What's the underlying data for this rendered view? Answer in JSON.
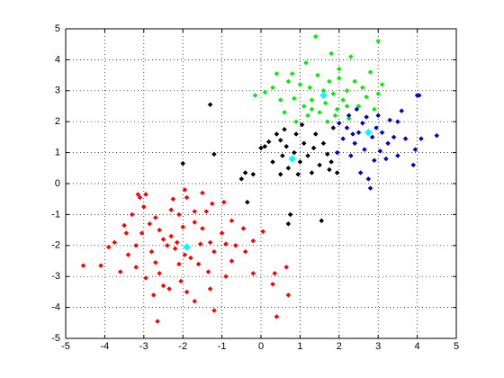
{
  "chart_data": {
    "type": "scatter",
    "xlim": [
      -5,
      5
    ],
    "ylim": [
      -5,
      5
    ],
    "xticks": [
      -5,
      -4,
      -3,
      -2,
      -1,
      0,
      1,
      2,
      3,
      4,
      5
    ],
    "yticks": [
      -5,
      -4,
      -3,
      -2,
      -1,
      0,
      1,
      2,
      3,
      4,
      5
    ],
    "grid": true,
    "series": [
      {
        "color": "#ff0000",
        "x": [
          -4.55,
          -4.1,
          -3.9,
          -3.75,
          -3.45,
          -3.15,
          -3.1,
          -2.95,
          -3.0,
          -3.3,
          -3.5,
          -3.6,
          -3.4,
          -3.2,
          -3.05,
          -2.85,
          -2.7,
          -2.8,
          -2.7,
          -2.6,
          -2.75,
          -2.65,
          -2.5,
          -2.4,
          -2.3,
          -2.3,
          -2.25,
          -2.1,
          -2.0,
          -1.95,
          -2.1,
          -2.05,
          -1.9,
          -1.7,
          -1.6,
          -1.55,
          -1.5,
          -1.7,
          -1.9,
          -1.5,
          -1.4,
          -1.35,
          -1.3,
          -1.2,
          -1.2,
          -1.0,
          -0.95,
          -0.75,
          -0.65,
          -0.45,
          -0.4,
          -0.2,
          -0.2,
          0.05,
          0.3,
          0.4,
          0.7,
          0.65,
          0.35,
          -1.8,
          -2.2,
          -2.5,
          -1.3,
          -0.9,
          -1.7,
          -3.2,
          -2.95,
          -2.35,
          -1.95,
          -2.6,
          -2.15,
          -1.25,
          -0.75,
          -0.9
        ],
        "y": [
          -2.65,
          -2.65,
          -2.05,
          -1.9,
          -1.6,
          -0.35,
          -0.45,
          -0.35,
          -0.75,
          -1.0,
          -1.35,
          -2.85,
          -2.3,
          -2.0,
          -1.6,
          -1.3,
          -1.1,
          -2.2,
          -2.55,
          -2.9,
          -3.6,
          -4.45,
          -3.3,
          -2.0,
          -1.7,
          -0.85,
          -0.5,
          -1.0,
          -1.4,
          -2.3,
          -2.6,
          -3.15,
          -3.5,
          -3.8,
          -2.6,
          -1.95,
          -1.45,
          -0.9,
          -0.45,
          -0.3,
          -0.9,
          -2.85,
          -3.4,
          -4.1,
          -2.2,
          -1.6,
          -0.6,
          -1.2,
          -2.0,
          -1.45,
          -2.2,
          -1.85,
          -2.9,
          -1.55,
          -3.25,
          -4.3,
          -3.6,
          -2.7,
          -2.9,
          -2.4,
          -2.1,
          -1.8,
          -1.9,
          -3.0,
          -1.25,
          -2.7,
          -3.05,
          -3.4,
          -0.2,
          -1.5,
          -1.9,
          -0.65,
          -2.5,
          -1.95
        ]
      },
      {
        "color": "#00ee00",
        "x": [
          -0.15,
          0.1,
          0.3,
          0.4,
          0.5,
          0.6,
          0.7,
          0.8,
          0.85,
          0.9,
          1.0,
          1.1,
          1.15,
          1.2,
          1.25,
          1.3,
          1.4,
          1.45,
          1.5,
          1.6,
          1.65,
          1.7,
          1.75,
          1.8,
          1.85,
          1.95,
          2.0,
          2.1,
          2.2,
          2.25,
          2.3,
          2.4,
          2.5,
          2.6,
          2.7,
          2.8,
          2.9,
          3.0,
          3.1,
          3.0,
          2.0,
          1.3,
          2.2,
          1.9
        ],
        "y": [
          2.85,
          2.95,
          3.1,
          3.55,
          2.7,
          2.3,
          3.3,
          3.55,
          2.75,
          2.0,
          3.2,
          2.5,
          3.9,
          2.2,
          3.1,
          2.7,
          4.75,
          3.5,
          2.3,
          3.0,
          2.6,
          2.0,
          3.3,
          4.2,
          2.9,
          2.4,
          3.7,
          2.7,
          3.0,
          2.1,
          4.1,
          3.3,
          2.5,
          3.1,
          2.8,
          3.6,
          2.4,
          4.6,
          3.2,
          2.9,
          3.4,
          2.4,
          2.5,
          2.2
        ]
      },
      {
        "color": "#0000cc",
        "x": [
          1.95,
          2.0,
          2.1,
          2.2,
          2.25,
          2.3,
          2.4,
          2.45,
          2.5,
          2.55,
          2.6,
          2.65,
          2.7,
          2.75,
          2.8,
          2.85,
          2.9,
          2.95,
          3.0,
          3.05,
          3.1,
          3.2,
          3.25,
          3.3,
          3.4,
          3.5,
          3.6,
          3.7,
          3.9,
          3.95,
          4.0,
          4.05,
          4.1,
          4.5,
          3.5,
          2.35
        ],
        "y": [
          1.0,
          1.95,
          1.45,
          1.8,
          2.2,
          0.9,
          1.3,
          2.4,
          1.65,
          0.35,
          1.95,
          1.1,
          2.15,
          0.15,
          -0.15,
          1.5,
          0.75,
          1.8,
          2.2,
          1.05,
          1.65,
          0.8,
          1.3,
          2.05,
          1.5,
          0.9,
          2.35,
          1.45,
          0.6,
          1.1,
          2.85,
          2.85,
          1.45,
          1.55,
          2.0,
          1.6
        ]
      },
      {
        "color": "#000000",
        "x": [
          -1.3,
          -2.0,
          -1.2,
          -0.5,
          -0.35,
          -0.4,
          -0.2,
          0.0,
          0.1,
          0.2,
          0.3,
          0.4,
          0.5,
          0.55,
          0.6,
          0.65,
          0.7,
          0.75,
          0.7,
          0.85,
          0.9,
          1.0,
          1.05,
          1.1,
          1.2,
          1.3,
          1.35,
          1.4,
          1.5,
          1.55,
          1.6,
          1.7,
          1.75,
          1.8,
          1.85,
          1.95,
          0.5,
          0.95
        ],
        "y": [
          2.55,
          0.65,
          0.95,
          0.15,
          -0.6,
          0.35,
          0.3,
          1.15,
          1.2,
          1.35,
          0.7,
          1.6,
          1.4,
          0.9,
          1.75,
          1.2,
          0.5,
          -1.0,
          -1.3,
          1.0,
          1.6,
          0.7,
          1.9,
          1.3,
          0.9,
          0.35,
          1.15,
          1.6,
          0.6,
          -1.2,
          1.3,
          0.95,
          0.45,
          0.7,
          1.8,
          0.35,
          0.3,
          0.3
        ]
      },
      {
        "color": "#00ffff",
        "size": 4,
        "x": [
          -1.9,
          1.6,
          2.75,
          0.8
        ],
        "y": [
          -2.05,
          2.85,
          1.65,
          0.8
        ]
      }
    ]
  }
}
